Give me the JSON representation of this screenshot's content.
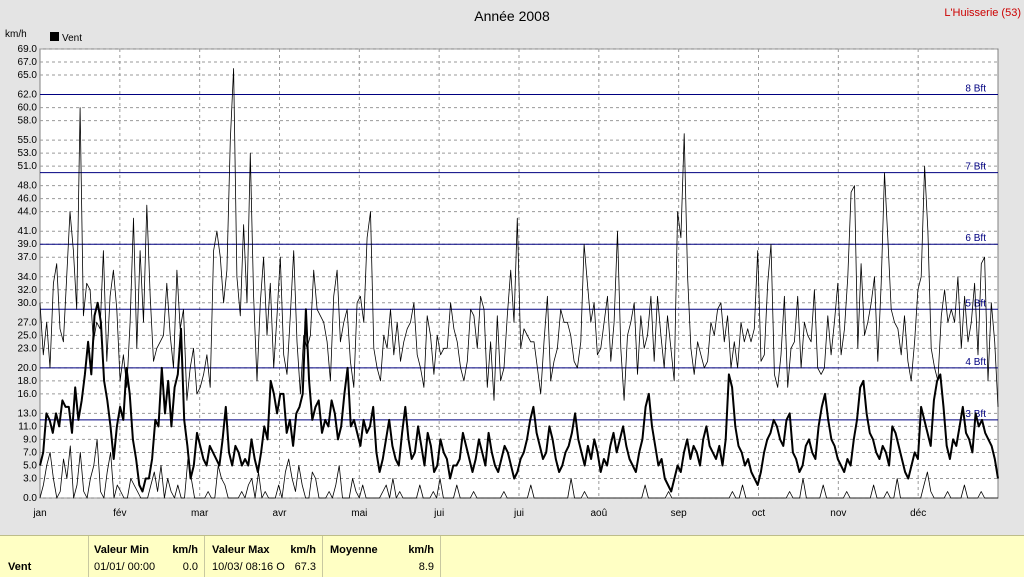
{
  "header": {
    "title": "Année 2008",
    "station": "L'Huisserie (53)",
    "unit": "km/h",
    "legend": "Vent"
  },
  "colors": {
    "background": "#e4e4e4",
    "plot_background": "#ffffff",
    "beaufort_lines": "#000080",
    "station_text": "#cc0000",
    "summary_background": "#ffffc4"
  },
  "summary": {
    "row_label": "Vent",
    "min_header": "Valeur Min",
    "min_unit": "km/h",
    "min_date": "01/01/  00:00",
    "min_value": "0.0",
    "max_header": "Valeur Max",
    "max_unit": "km/h",
    "max_date": "10/03/  08:16  O",
    "max_value": "67.3",
    "avg_header": "Moyenne",
    "avg_unit": "km/h",
    "avg_value": "8.9"
  },
  "chart_data": {
    "type": "line",
    "title": "Année 2008",
    "ylabel": "km/h",
    "ylim": [
      0,
      69
    ],
    "y_ticks": [
      "0.0",
      "3.0",
      "5.0",
      "7.0",
      "9.0",
      "11.0",
      "13.0",
      "16.0",
      "18.0",
      "20.0",
      "23.0",
      "25.0",
      "27.0",
      "30.0",
      "32.0",
      "34.0",
      "37.0",
      "39.0",
      "41.0",
      "44.0",
      "46.0",
      "48.0",
      "51.0",
      "53.0",
      "55.0",
      "58.0",
      "60.0",
      "62.0",
      "65.0",
      "67.0",
      "69.0"
    ],
    "x_labels": [
      "jan",
      "fév",
      "mar",
      "avr",
      "mai",
      "jui",
      "jui",
      "aoû",
      "sep",
      "oct",
      "nov",
      "déc"
    ],
    "legend_position": "top-left",
    "grid": true,
    "beaufort": [
      {
        "label": "3 Bft",
        "value": 12
      },
      {
        "label": "4 Bft",
        "value": 20
      },
      {
        "label": "5 Bft",
        "value": 29
      },
      {
        "label": "6 Bft",
        "value": 39
      },
      {
        "label": "7 Bft",
        "value": 50
      },
      {
        "label": "8 Bft",
        "value": 62
      }
    ],
    "series": [
      {
        "name": "Vent",
        "style": "max-gust",
        "values": [
          30,
          22,
          27,
          20,
          33,
          36,
          26,
          24,
          34,
          44,
          38,
          29,
          60,
          28,
          33,
          32,
          24,
          27,
          26,
          38,
          21,
          31,
          35,
          29,
          18,
          22,
          17,
          27,
          43,
          23,
          38,
          27,
          45,
          31,
          21,
          23,
          24,
          25,
          33,
          25,
          20,
          35,
          26,
          29,
          15,
          20,
          23,
          16,
          17,
          19,
          22,
          17,
          38,
          41,
          37,
          30,
          35,
          55,
          66,
          34,
          28,
          42,
          30,
          53,
          31,
          18,
          30,
          37,
          25,
          33,
          20,
          28,
          37,
          22,
          19,
          28,
          38,
          24,
          16,
          25,
          23,
          25,
          35,
          29,
          28,
          27,
          24,
          18,
          31,
          35,
          24,
          27,
          29,
          21,
          17,
          30,
          31,
          27,
          40,
          44,
          23,
          20,
          18,
          25,
          23,
          29,
          22,
          27,
          21,
          24,
          26,
          27,
          30,
          22,
          20,
          17,
          28,
          25,
          19,
          25,
          22,
          23,
          23,
          30,
          26,
          24,
          20,
          18,
          21,
          29,
          28,
          23,
          31,
          29,
          17,
          24,
          15,
          28,
          18,
          20,
          28,
          35,
          27,
          43,
          23,
          26,
          25,
          24,
          24,
          20,
          16,
          24,
          31,
          18,
          21,
          23,
          29,
          27,
          27,
          25,
          21,
          20,
          24,
          39,
          33,
          27,
          30,
          22,
          23,
          27,
          31,
          21,
          27,
          41,
          23,
          15,
          25,
          27,
          30,
          19,
          28,
          23,
          25,
          31,
          21,
          31,
          25,
          20,
          28,
          23,
          18,
          44,
          40,
          56,
          34,
          23,
          19,
          24,
          22,
          20,
          21,
          27,
          25,
          29,
          30,
          24,
          28,
          20,
          24,
          20,
          27,
          24,
          26,
          24,
          26,
          38,
          21,
          22,
          33,
          39,
          19,
          17,
          22,
          31,
          17,
          23,
          24,
          31,
          20,
          27,
          25,
          24,
          32,
          20,
          19,
          20,
          28,
          22,
          27,
          33,
          22,
          26,
          34,
          47,
          48,
          23,
          36,
          25,
          27,
          30,
          34,
          21,
          33,
          50,
          40,
          29,
          27,
          26,
          22,
          28,
          21,
          18,
          24,
          32,
          34,
          51,
          41,
          23,
          20,
          18,
          28,
          32,
          27,
          29,
          27,
          34,
          23,
          31,
          24,
          27,
          33,
          22,
          36,
          37,
          18,
          30,
          24,
          14
        ],
        "_note": "max gusts"
      },
      {
        "name": "",
        "style": "mean",
        "values": [
          5,
          7,
          13,
          12,
          10,
          13,
          11,
          15,
          14,
          14,
          10,
          17,
          12,
          15,
          19,
          24,
          19,
          28,
          30,
          27,
          18,
          15,
          11,
          6,
          11,
          14,
          12,
          20,
          16,
          9,
          6,
          2,
          1,
          3,
          3,
          6,
          12,
          11,
          20,
          13,
          18,
          11,
          17,
          19,
          26,
          12,
          8,
          3,
          5,
          10,
          8,
          6,
          5,
          8,
          7,
          6,
          5,
          9,
          14,
          7,
          5,
          8,
          7,
          5,
          6,
          5,
          9,
          6,
          4,
          7,
          11,
          9,
          18,
          16,
          13,
          16,
          16,
          10,
          12,
          8,
          13,
          14,
          16,
          29,
          18,
          12,
          14,
          15,
          10,
          12,
          11,
          15,
          13,
          9,
          11,
          16,
          20,
          11,
          12,
          10,
          8,
          12,
          10,
          11,
          14,
          7,
          4,
          6,
          9,
          12,
          8,
          6,
          5,
          10,
          14,
          9,
          6,
          7,
          11,
          8,
          5,
          10,
          8,
          4,
          5,
          9,
          7,
          6,
          3,
          5,
          5,
          6,
          10,
          8,
          6,
          4,
          6,
          9,
          7,
          5,
          10,
          7,
          5,
          4,
          6,
          8,
          7,
          5,
          3,
          4,
          6,
          7,
          9,
          12,
          14,
          10,
          8,
          6,
          7,
          11,
          9,
          6,
          4,
          5,
          7,
          8,
          10,
          13,
          9,
          7,
          5,
          8,
          6,
          9,
          7,
          4,
          6,
          5,
          8,
          10,
          7,
          9,
          11,
          8,
          6,
          5,
          4,
          7,
          9,
          14,
          16,
          11,
          8,
          5,
          6,
          3,
          2,
          1,
          3,
          5,
          4,
          7,
          9,
          6,
          8,
          7,
          5,
          9,
          11,
          8,
          7,
          6,
          8,
          5,
          9,
          19,
          17,
          11,
          8,
          7,
          5,
          6,
          4,
          3,
          2,
          4,
          7,
          9,
          10,
          12,
          11,
          9,
          8,
          12,
          13,
          7,
          6,
          4,
          5,
          8,
          9,
          7,
          6,
          11,
          14,
          16,
          12,
          9,
          8,
          6,
          5,
          4,
          6,
          5,
          9,
          12,
          17,
          18,
          13,
          10,
          9,
          7,
          6,
          8,
          7,
          5,
          11,
          10,
          8,
          6,
          4,
          3,
          5,
          7,
          6,
          14,
          12,
          10,
          8,
          15,
          18,
          19,
          14,
          8,
          6,
          9,
          8,
          11,
          14,
          10,
          9,
          7,
          13,
          11,
          12,
          10,
          9,
          8,
          6,
          3
        ]
      },
      {
        "name": "",
        "style": "min",
        "values": [
          0,
          2,
          5,
          7,
          3,
          0,
          1,
          6,
          3,
          8,
          0,
          2,
          7,
          1,
          0,
          3,
          5,
          9,
          1,
          0,
          4,
          7,
          0,
          2,
          1,
          0,
          0,
          3,
          2,
          1,
          0,
          0,
          0,
          2,
          4,
          1,
          5,
          0,
          3,
          1,
          0,
          2,
          0,
          0,
          6,
          3,
          0,
          0,
          0,
          0,
          1,
          0,
          0,
          5,
          3,
          2,
          0,
          0,
          0,
          0,
          1,
          0,
          2,
          3,
          0,
          4,
          0,
          1,
          0,
          0,
          0,
          2,
          0,
          4,
          6,
          3,
          1,
          5,
          2,
          0,
          0,
          4,
          3,
          0,
          0,
          0,
          1,
          0,
          2,
          5,
          0,
          0,
          0,
          3,
          1,
          0,
          2,
          0,
          0,
          0,
          0,
          0,
          1,
          2,
          0,
          3,
          0,
          1,
          0,
          0,
          0,
          0,
          0,
          2,
          0,
          0,
          0,
          1,
          0,
          3,
          0,
          0,
          0,
          0,
          2,
          0,
          0,
          0,
          0,
          1,
          0,
          0,
          0,
          0,
          0,
          0,
          0,
          0,
          1,
          0,
          0,
          0,
          0,
          0,
          0,
          0,
          2,
          0,
          0,
          0,
          0,
          0,
          0,
          0,
          0,
          0,
          0,
          0,
          3,
          0,
          0,
          0,
          1,
          0,
          0,
          0,
          0,
          0,
          0,
          0,
          0,
          0,
          0,
          0,
          0,
          0,
          0,
          0,
          0,
          0,
          2,
          0,
          0,
          0,
          0,
          0,
          0,
          1,
          0,
          0,
          0,
          0,
          0,
          0,
          0,
          0,
          0,
          0,
          0,
          0,
          0,
          0,
          0,
          0,
          0,
          0,
          1,
          0,
          0,
          2,
          0,
          0,
          0,
          0,
          0,
          0,
          0,
          0,
          0,
          0,
          0,
          0,
          0,
          1,
          0,
          0,
          0,
          3,
          0,
          0,
          0,
          0,
          0,
          2,
          0,
          0,
          0,
          0,
          0,
          0,
          1,
          0,
          0,
          0,
          0,
          0,
          0,
          0,
          2,
          0,
          0,
          0,
          1,
          0,
          0,
          3,
          0,
          0,
          0,
          0,
          0,
          0,
          0,
          2,
          4,
          1,
          0,
          0,
          0,
          0,
          1,
          0,
          0,
          0,
          0,
          2,
          0,
          0,
          0,
          0,
          1,
          0,
          0,
          0,
          0,
          0
        ]
      }
    ]
  }
}
